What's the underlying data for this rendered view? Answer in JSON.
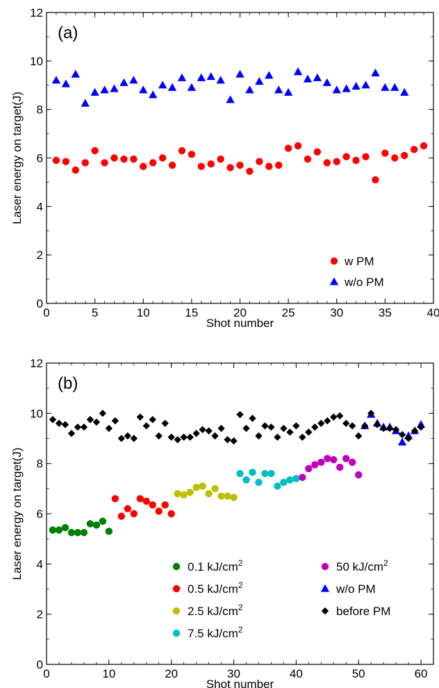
{
  "chart_data": [
    {
      "type": "scatter",
      "panel_label": "(a)",
      "xlabel": "Shot number",
      "ylabel": "Laser energy on target(J)",
      "xlim": [
        0,
        40
      ],
      "ylim": [
        0,
        12
      ],
      "xticks": [
        "0",
        "5",
        "10",
        "15",
        "20",
        "25",
        "30",
        "35",
        "40"
      ],
      "yticks": [
        "0",
        "2",
        "4",
        "6",
        "8",
        "10",
        "12"
      ],
      "grid": false,
      "legend_position": "bottom-right",
      "series": [
        {
          "name": "w PM",
          "marker": "circle",
          "color": "#ff0000",
          "x": [
            1,
            2,
            3,
            4,
            5,
            6,
            7,
            8,
            9,
            10,
            11,
            12,
            13,
            14,
            15,
            16,
            17,
            18,
            19,
            20,
            21,
            22,
            23,
            24,
            25,
            26,
            27,
            28,
            29,
            30,
            31,
            32,
            33,
            34,
            35,
            36,
            37,
            38,
            39
          ],
          "y": [
            5.9,
            5.85,
            5.5,
            5.8,
            6.3,
            5.8,
            6.0,
            5.95,
            5.95,
            5.65,
            5.8,
            6.0,
            5.7,
            6.3,
            6.15,
            5.65,
            5.75,
            5.95,
            5.6,
            5.7,
            5.45,
            5.85,
            5.65,
            5.7,
            6.4,
            6.5,
            5.95,
            6.25,
            5.8,
            5.85,
            6.05,
            5.9,
            6.05,
            5.1,
            6.2,
            6.0,
            6.1,
            6.35,
            6.5
          ]
        },
        {
          "name": "w/o PM",
          "marker": "triangle",
          "color": "#0000ff",
          "x": [
            1,
            2,
            3,
            4,
            5,
            6,
            7,
            8,
            9,
            10,
            11,
            12,
            13,
            14,
            15,
            16,
            17,
            18,
            19,
            20,
            21,
            22,
            23,
            24,
            25,
            26,
            27,
            28,
            29,
            30,
            31,
            32,
            33,
            34,
            35,
            36,
            37
          ],
          "y": [
            9.2,
            9.05,
            9.45,
            8.25,
            8.7,
            8.8,
            8.85,
            9.1,
            9.2,
            8.8,
            8.6,
            9.0,
            8.9,
            9.3,
            8.9,
            9.3,
            9.35,
            9.2,
            8.4,
            9.45,
            8.8,
            9.15,
            9.4,
            8.8,
            8.7,
            9.55,
            9.25,
            9.3,
            9.1,
            8.8,
            8.85,
            8.95,
            9.0,
            9.5,
            8.9,
            8.9,
            8.7
          ]
        }
      ]
    },
    {
      "type": "scatter",
      "panel_label": "(b)",
      "xlabel": "Shot number",
      "ylabel": "Laser energy on target(J)",
      "xlim": [
        0,
        62
      ],
      "ylim": [
        0,
        12
      ],
      "xticks": [
        "0",
        "10",
        "20",
        "30",
        "40",
        "50",
        "60"
      ],
      "yticks": [
        "0",
        "2",
        "4",
        "6",
        "8",
        "10",
        "12"
      ],
      "grid": false,
      "legend_position": "bottom-right",
      "series": [
        {
          "name": "0.1 kJ/cm",
          "name_sup": "2",
          "marker": "circle",
          "color": "#008000",
          "x": [
            1,
            2,
            3,
            4,
            5,
            6,
            7,
            8,
            9,
            10
          ],
          "y": [
            5.35,
            5.35,
            5.45,
            5.25,
            5.25,
            5.25,
            5.6,
            5.55,
            5.7,
            5.3
          ]
        },
        {
          "name": "0.5 kJ/cm",
          "name_sup": "2",
          "marker": "circle",
          "color": "#ff0000",
          "x": [
            11,
            12,
            13,
            14,
            15,
            16,
            17,
            18,
            19,
            20
          ],
          "y": [
            6.6,
            5.9,
            6.2,
            6.0,
            6.6,
            6.5,
            6.35,
            6.1,
            6.35,
            6.0
          ]
        },
        {
          "name": "2.5 kJ/cm",
          "name_sup": "2",
          "marker": "circle",
          "color": "#bfbf00",
          "x": [
            21,
            22,
            23,
            24,
            25,
            26,
            27,
            28,
            29,
            30
          ],
          "y": [
            6.8,
            6.75,
            6.85,
            7.05,
            7.1,
            6.8,
            7.0,
            6.7,
            6.7,
            6.65
          ]
        },
        {
          "name": "7.5 kJ/cm",
          "name_sup": "2",
          "marker": "circle",
          "color": "#00bfbf",
          "x": [
            31,
            32,
            33,
            34,
            35,
            36,
            37,
            38,
            39,
            40
          ],
          "y": [
            7.6,
            7.35,
            7.65,
            7.25,
            7.6,
            7.6,
            7.1,
            7.25,
            7.35,
            7.4
          ]
        },
        {
          "name": "50 kJ/cm",
          "name_sup": "2",
          "marker": "circle",
          "color": "#bf00bf",
          "x": [
            41,
            42,
            43,
            44,
            45,
            46,
            47,
            48,
            49,
            50
          ],
          "y": [
            7.45,
            7.8,
            7.95,
            8.05,
            8.2,
            8.15,
            7.85,
            8.2,
            8.05,
            7.55
          ]
        },
        {
          "name": "w/o PM",
          "marker": "triangle",
          "color": "#0000ff",
          "x": [
            51,
            52,
            53,
            54,
            55,
            56,
            57,
            58,
            59,
            60
          ],
          "y": [
            9.5,
            9.95,
            9.6,
            9.45,
            9.45,
            9.3,
            8.85,
            9.1,
            9.3,
            9.55
          ]
        },
        {
          "name": "before PM",
          "marker": "diamond",
          "color": "#000000",
          "x": [
            1,
            2,
            3,
            4,
            5,
            6,
            7,
            8,
            9,
            10,
            11,
            12,
            13,
            14,
            15,
            16,
            17,
            18,
            19,
            20,
            21,
            22,
            23,
            24,
            25,
            26,
            27,
            28,
            29,
            30,
            31,
            32,
            33,
            34,
            35,
            36,
            37,
            38,
            39,
            40,
            41,
            42,
            43,
            44,
            45,
            46,
            47,
            48,
            49,
            50,
            51,
            52,
            53,
            54,
            55,
            56,
            57,
            58,
            59,
            60
          ],
          "y": [
            9.75,
            9.6,
            9.55,
            9.2,
            9.45,
            9.45,
            9.75,
            9.65,
            10.0,
            9.4,
            9.7,
            9.0,
            9.1,
            9.0,
            9.85,
            9.5,
            9.75,
            9.1,
            9.6,
            9.05,
            8.95,
            9.05,
            9.05,
            9.2,
            9.35,
            9.3,
            9.1,
            9.4,
            8.95,
            8.9,
            9.95,
            9.4,
            9.8,
            9.1,
            9.5,
            9.45,
            9.05,
            9.4,
            9.25,
            9.5,
            9.05,
            9.25,
            9.45,
            9.6,
            9.7,
            9.85,
            9.9,
            9.6,
            9.5,
            9.1,
            9.5,
            10.0,
            9.55,
            9.4,
            9.4,
            9.35,
            9.15,
            9.0,
            9.3,
            9.45
          ]
        }
      ]
    }
  ]
}
